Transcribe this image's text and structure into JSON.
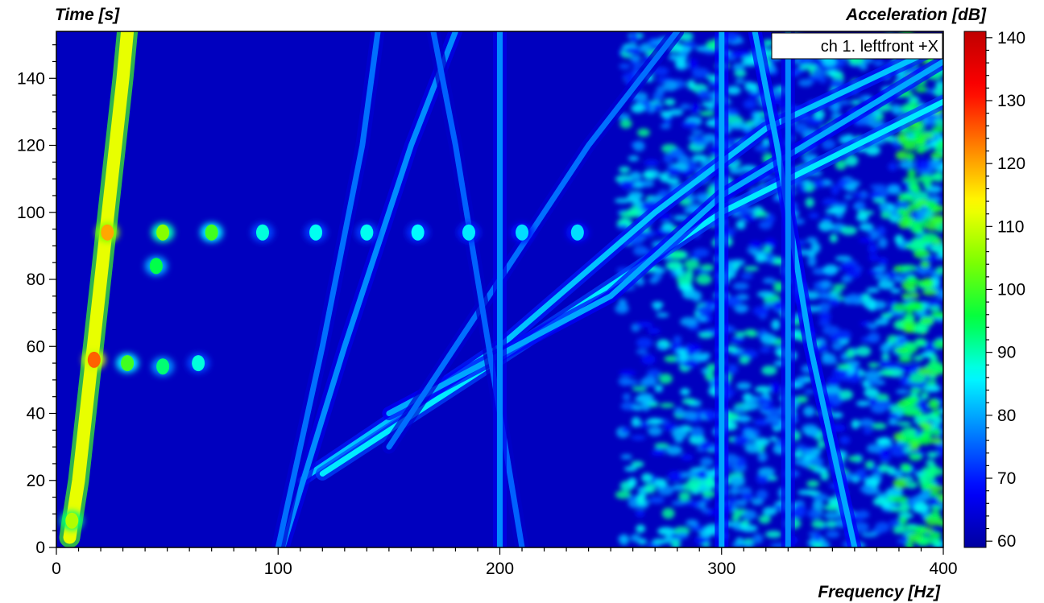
{
  "chart_data": {
    "type": "heatmap",
    "title": "",
    "xlabel": "Frequency [Hz]",
    "ylabel": "Time [s]",
    "colorbar_label": "Acceleration [dB]",
    "legend": "ch 1. leftfront +X",
    "legend_position": "top-right",
    "xlim": [
      0,
      400
    ],
    "ylim": [
      0,
      154
    ],
    "clim": [
      59,
      141
    ],
    "x_ticks": [
      0,
      100,
      200,
      300,
      400
    ],
    "y_ticks": [
      0,
      20,
      40,
      60,
      80,
      100,
      120,
      140
    ],
    "colorbar_ticks": [
      60,
      70,
      80,
      90,
      100,
      110,
      120,
      130,
      140
    ],
    "background_level_db": 62,
    "colormap": [
      "#0000a0",
      "#0000ff",
      "#0080ff",
      "#00ffff",
      "#00ff40",
      "#80ff00",
      "#ffff00",
      "#ff8000",
      "#ff0000",
      "#c00000"
    ],
    "tracks": [
      {
        "name": "main order",
        "points": [
          [
            6,
            3
          ],
          [
            10,
            20
          ],
          [
            15,
            50
          ],
          [
            20,
            80
          ],
          [
            25,
            110
          ],
          [
            30,
            140
          ],
          [
            32,
            154
          ]
        ],
        "level_db": 112
      },
      {
        "name": "order 2",
        "points": [
          [
            110,
            20
          ],
          [
            200,
            60
          ],
          [
            270,
            100
          ],
          [
            320,
            125
          ],
          [
            400,
            150
          ]
        ],
        "level_db": 82
      },
      {
        "name": "order 3",
        "points": [
          [
            120,
            22
          ],
          [
            220,
            65
          ],
          [
            300,
            100
          ],
          [
            400,
            133
          ]
        ],
        "level_db": 85
      },
      {
        "name": "order 4",
        "points": [
          [
            150,
            40
          ],
          [
            250,
            75
          ],
          [
            300,
            105
          ],
          [
            400,
            145
          ]
        ],
        "level_db": 80
      },
      {
        "name": "rising line a",
        "points": [
          [
            102,
            0
          ],
          [
            130,
            60
          ],
          [
            160,
            120
          ],
          [
            180,
            154
          ]
        ],
        "level_db": 78
      },
      {
        "name": "rising line b",
        "points": [
          [
            150,
            30
          ],
          [
            200,
            80
          ],
          [
            240,
            120
          ],
          [
            280,
            154
          ]
        ],
        "level_db": 76
      },
      {
        "name": "falling line a",
        "points": [
          [
            100,
            0
          ],
          [
            120,
            60
          ],
          [
            138,
            120
          ],
          [
            145,
            154
          ]
        ],
        "level_db": 76
      },
      {
        "name": "falling line b",
        "points": [
          [
            210,
            0
          ],
          [
            195,
            60
          ],
          [
            180,
            120
          ],
          [
            170,
            154
          ]
        ],
        "level_db": 75
      },
      {
        "name": "falling line c",
        "points": [
          [
            360,
            0
          ],
          [
            340,
            60
          ],
          [
            325,
            120
          ],
          [
            315,
            154
          ]
        ],
        "level_db": 80
      },
      {
        "name": "resonance 200 Hz",
        "points": [
          [
            200,
            0
          ],
          [
            200,
            154
          ]
        ],
        "level_db": 78
      },
      {
        "name": "resonance 300 Hz",
        "points": [
          [
            300,
            0
          ],
          [
            300,
            154
          ]
        ],
        "level_db": 80
      },
      {
        "name": "resonance 330 Hz",
        "points": [
          [
            330,
            0
          ],
          [
            330,
            154
          ]
        ],
        "level_db": 78
      }
    ],
    "hotspots": [
      {
        "x": 17,
        "y": 56,
        "level_db": 125
      },
      {
        "x": 23,
        "y": 94,
        "level_db": 120
      },
      {
        "x": 7,
        "y": 8,
        "level_db": 108
      },
      {
        "x": 48,
        "y": 94,
        "level_db": 105
      },
      {
        "x": 70,
        "y": 94,
        "level_db": 100
      },
      {
        "x": 45,
        "y": 84,
        "level_db": 95
      },
      {
        "x": 32,
        "y": 55,
        "level_db": 100
      },
      {
        "x": 48,
        "y": 54,
        "level_db": 93
      },
      {
        "x": 64,
        "y": 55,
        "level_db": 88
      },
      {
        "x": 93,
        "y": 94,
        "level_db": 88
      },
      {
        "x": 117,
        "y": 94,
        "level_db": 87
      },
      {
        "x": 140,
        "y": 94,
        "level_db": 87
      },
      {
        "x": 163,
        "y": 94,
        "level_db": 86
      },
      {
        "x": 186,
        "y": 94,
        "level_db": 85
      },
      {
        "x": 210,
        "y": 94,
        "level_db": 84
      },
      {
        "x": 235,
        "y": 94,
        "level_db": 84
      }
    ],
    "noise_regions": [
      {
        "x": [
          255,
          400
        ],
        "y": [
          0,
          154
        ],
        "level_db": [
          68,
          92
        ]
      },
      {
        "x": [
          380,
          400
        ],
        "y": [
          0,
          154
        ],
        "level_db": [
          90,
          100
        ]
      }
    ]
  }
}
